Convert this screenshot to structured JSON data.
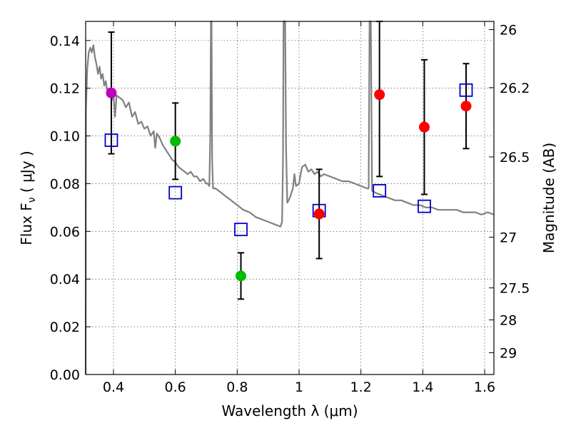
{
  "chart_data": {
    "type": "scatter",
    "xlabel": "Wavelength  λ (μm)",
    "ylabel": "Flux  F",
    "ylabel_sub": "ν",
    "ylabel_unit": " ( μJy )",
    "y2label": "Magnitude (AB)",
    "xlim": [
      0.31,
      1.63
    ],
    "ylim": [
      0.0,
      0.148
    ],
    "grid": true,
    "xticks": [
      {
        "v": 0.4,
        "label": "0.4"
      },
      {
        "v": 0.6,
        "label": "0.6"
      },
      {
        "v": 0.8,
        "label": "0.8"
      },
      {
        "v": 1.0,
        "label": "1"
      },
      {
        "v": 1.2,
        "label": "1.2"
      },
      {
        "v": 1.4,
        "label": "1.4"
      },
      {
        "v": 1.6,
        "label": "1.6"
      }
    ],
    "yticks": [
      {
        "v": 0.0,
        "label": "0.00"
      },
      {
        "v": 0.02,
        "label": "0.02"
      },
      {
        "v": 0.04,
        "label": "0.04"
      },
      {
        "v": 0.06,
        "label": "0.06"
      },
      {
        "v": 0.08,
        "label": "0.08"
      },
      {
        "v": 0.1,
        "label": "0.10"
      },
      {
        "v": 0.12,
        "label": "0.12"
      },
      {
        "v": 0.14,
        "label": "0.14"
      }
    ],
    "magticks": [
      {
        "mag": 26,
        "label": "26"
      },
      {
        "mag": 26.2,
        "label": "26.2"
      },
      {
        "mag": 26.5,
        "label": "26.5"
      },
      {
        "mag": 27,
        "label": "27"
      },
      {
        "mag": 27.5,
        "label": "27.5"
      },
      {
        "mag": 28,
        "label": "28"
      },
      {
        "mag": 29,
        "label": "29"
      }
    ],
    "spectrum": {
      "name": "model-spectrum",
      "color": "#808080",
      "points": [
        [
          0.31,
          0.0
        ],
        [
          0.311,
          0.11
        ],
        [
          0.315,
          0.128
        ],
        [
          0.32,
          0.135
        ],
        [
          0.325,
          0.137
        ],
        [
          0.33,
          0.135
        ],
        [
          0.335,
          0.138
        ],
        [
          0.34,
          0.133
        ],
        [
          0.345,
          0.13
        ],
        [
          0.35,
          0.126
        ],
        [
          0.355,
          0.129
        ],
        [
          0.36,
          0.124
        ],
        [
          0.365,
          0.126
        ],
        [
          0.37,
          0.121
        ],
        [
          0.375,
          0.123
        ],
        [
          0.38,
          0.119
        ],
        [
          0.385,
          0.12
        ],
        [
          0.39,
          0.118
        ],
        [
          0.395,
          0.115
        ],
        [
          0.4,
          0.117
        ],
        [
          0.405,
          0.108
        ],
        [
          0.41,
          0.117
        ],
        [
          0.42,
          0.116
        ],
        [
          0.43,
          0.115
        ],
        [
          0.44,
          0.112
        ],
        [
          0.45,
          0.114
        ],
        [
          0.46,
          0.108
        ],
        [
          0.47,
          0.11
        ],
        [
          0.48,
          0.105
        ],
        [
          0.49,
          0.106
        ],
        [
          0.5,
          0.103
        ],
        [
          0.51,
          0.104
        ],
        [
          0.52,
          0.1
        ],
        [
          0.53,
          0.102
        ],
        [
          0.535,
          0.095
        ],
        [
          0.54,
          0.101
        ],
        [
          0.55,
          0.099
        ],
        [
          0.56,
          0.096
        ],
        [
          0.57,
          0.094
        ],
        [
          0.58,
          0.092
        ],
        [
          0.59,
          0.09
        ],
        [
          0.6,
          0.089
        ],
        [
          0.61,
          0.087
        ],
        [
          0.62,
          0.086
        ],
        [
          0.63,
          0.085
        ],
        [
          0.64,
          0.084
        ],
        [
          0.65,
          0.085
        ],
        [
          0.66,
          0.083
        ],
        [
          0.67,
          0.083
        ],
        [
          0.68,
          0.081
        ],
        [
          0.69,
          0.082
        ],
        [
          0.7,
          0.08
        ],
        [
          0.705,
          0.08
        ],
        [
          0.71,
          0.079
        ],
        [
          0.713,
          0.1
        ],
        [
          0.715,
          0.148
        ],
        [
          0.717,
          0.148
        ],
        [
          0.719,
          0.09
        ],
        [
          0.722,
          0.078
        ],
        [
          0.73,
          0.078
        ],
        [
          0.74,
          0.077
        ],
        [
          0.75,
          0.076
        ],
        [
          0.76,
          0.075
        ],
        [
          0.77,
          0.074
        ],
        [
          0.78,
          0.073
        ],
        [
          0.79,
          0.072
        ],
        [
          0.8,
          0.071
        ],
        [
          0.82,
          0.069
        ],
        [
          0.84,
          0.068
        ],
        [
          0.86,
          0.066
        ],
        [
          0.88,
          0.065
        ],
        [
          0.9,
          0.064
        ],
        [
          0.92,
          0.063
        ],
        [
          0.94,
          0.062
        ],
        [
          0.945,
          0.064
        ],
        [
          0.948,
          0.09
        ],
        [
          0.95,
          0.148
        ],
        [
          0.955,
          0.148
        ],
        [
          0.958,
          0.095
        ],
        [
          0.962,
          0.072
        ],
        [
          0.97,
          0.074
        ],
        [
          0.98,
          0.078
        ],
        [
          0.985,
          0.084
        ],
        [
          0.99,
          0.079
        ],
        [
          1.0,
          0.08
        ],
        [
          1.005,
          0.084
        ],
        [
          1.01,
          0.087
        ],
        [
          1.02,
          0.088
        ],
        [
          1.03,
          0.085
        ],
        [
          1.04,
          0.086
        ],
        [
          1.05,
          0.084
        ],
        [
          1.06,
          0.085
        ],
        [
          1.07,
          0.083
        ],
        [
          1.08,
          0.084
        ],
        [
          1.1,
          0.083
        ],
        [
          1.12,
          0.082
        ],
        [
          1.14,
          0.081
        ],
        [
          1.16,
          0.081
        ],
        [
          1.18,
          0.08
        ],
        [
          1.2,
          0.079
        ],
        [
          1.22,
          0.078
        ],
        [
          1.225,
          0.078
        ],
        [
          1.228,
          0.148
        ],
        [
          1.232,
          0.148
        ],
        [
          1.236,
          0.077
        ],
        [
          1.25,
          0.076
        ],
        [
          1.27,
          0.075
        ],
        [
          1.29,
          0.074
        ],
        [
          1.31,
          0.073
        ],
        [
          1.33,
          0.073
        ],
        [
          1.35,
          0.072
        ],
        [
          1.37,
          0.071
        ],
        [
          1.39,
          0.071
        ],
        [
          1.41,
          0.07
        ],
        [
          1.43,
          0.07
        ],
        [
          1.45,
          0.069
        ],
        [
          1.47,
          0.069
        ],
        [
          1.49,
          0.069
        ],
        [
          1.51,
          0.069
        ],
        [
          1.53,
          0.068
        ],
        [
          1.55,
          0.068
        ],
        [
          1.57,
          0.068
        ],
        [
          1.59,
          0.067
        ],
        [
          1.61,
          0.068
        ],
        [
          1.63,
          0.067
        ]
      ]
    },
    "observed": [
      {
        "x": 0.393,
        "y": 0.118,
        "err_low": 0.0255,
        "err_high": 0.0255,
        "color": "#bf00bf"
      },
      {
        "x": 0.6,
        "y": 0.0978,
        "err_low": 0.016,
        "err_high": 0.016,
        "color": "#00bb00"
      },
      {
        "x": 0.812,
        "y": 0.0413,
        "err_low": 0.0097,
        "err_high": 0.0097,
        "color": "#00bb00"
      },
      {
        "x": 1.065,
        "y": 0.0673,
        "err_low": 0.0187,
        "err_high": 0.0187,
        "color": "#ff0000"
      },
      {
        "x": 1.26,
        "y": 0.1173,
        "err_low": 0.0343,
        "err_high": 0.0343,
        "color": "#ff0000"
      },
      {
        "x": 1.405,
        "y": 0.1037,
        "err_low": 0.0282,
        "err_high": 0.0282,
        "color": "#ff0000"
      },
      {
        "x": 1.54,
        "y": 0.1125,
        "err_low": 0.0178,
        "err_high": 0.0178,
        "color": "#ff0000"
      }
    ],
    "model_squares": {
      "color": "#0000cc",
      "points": [
        {
          "x": 0.393,
          "y": 0.0982
        },
        {
          "x": 0.6,
          "y": 0.0762
        },
        {
          "x": 0.812,
          "y": 0.0608
        },
        {
          "x": 1.065,
          "y": 0.0687
        },
        {
          "x": 1.26,
          "y": 0.077
        },
        {
          "x": 1.405,
          "y": 0.0705
        },
        {
          "x": 1.54,
          "y": 0.1192
        }
      ]
    }
  }
}
